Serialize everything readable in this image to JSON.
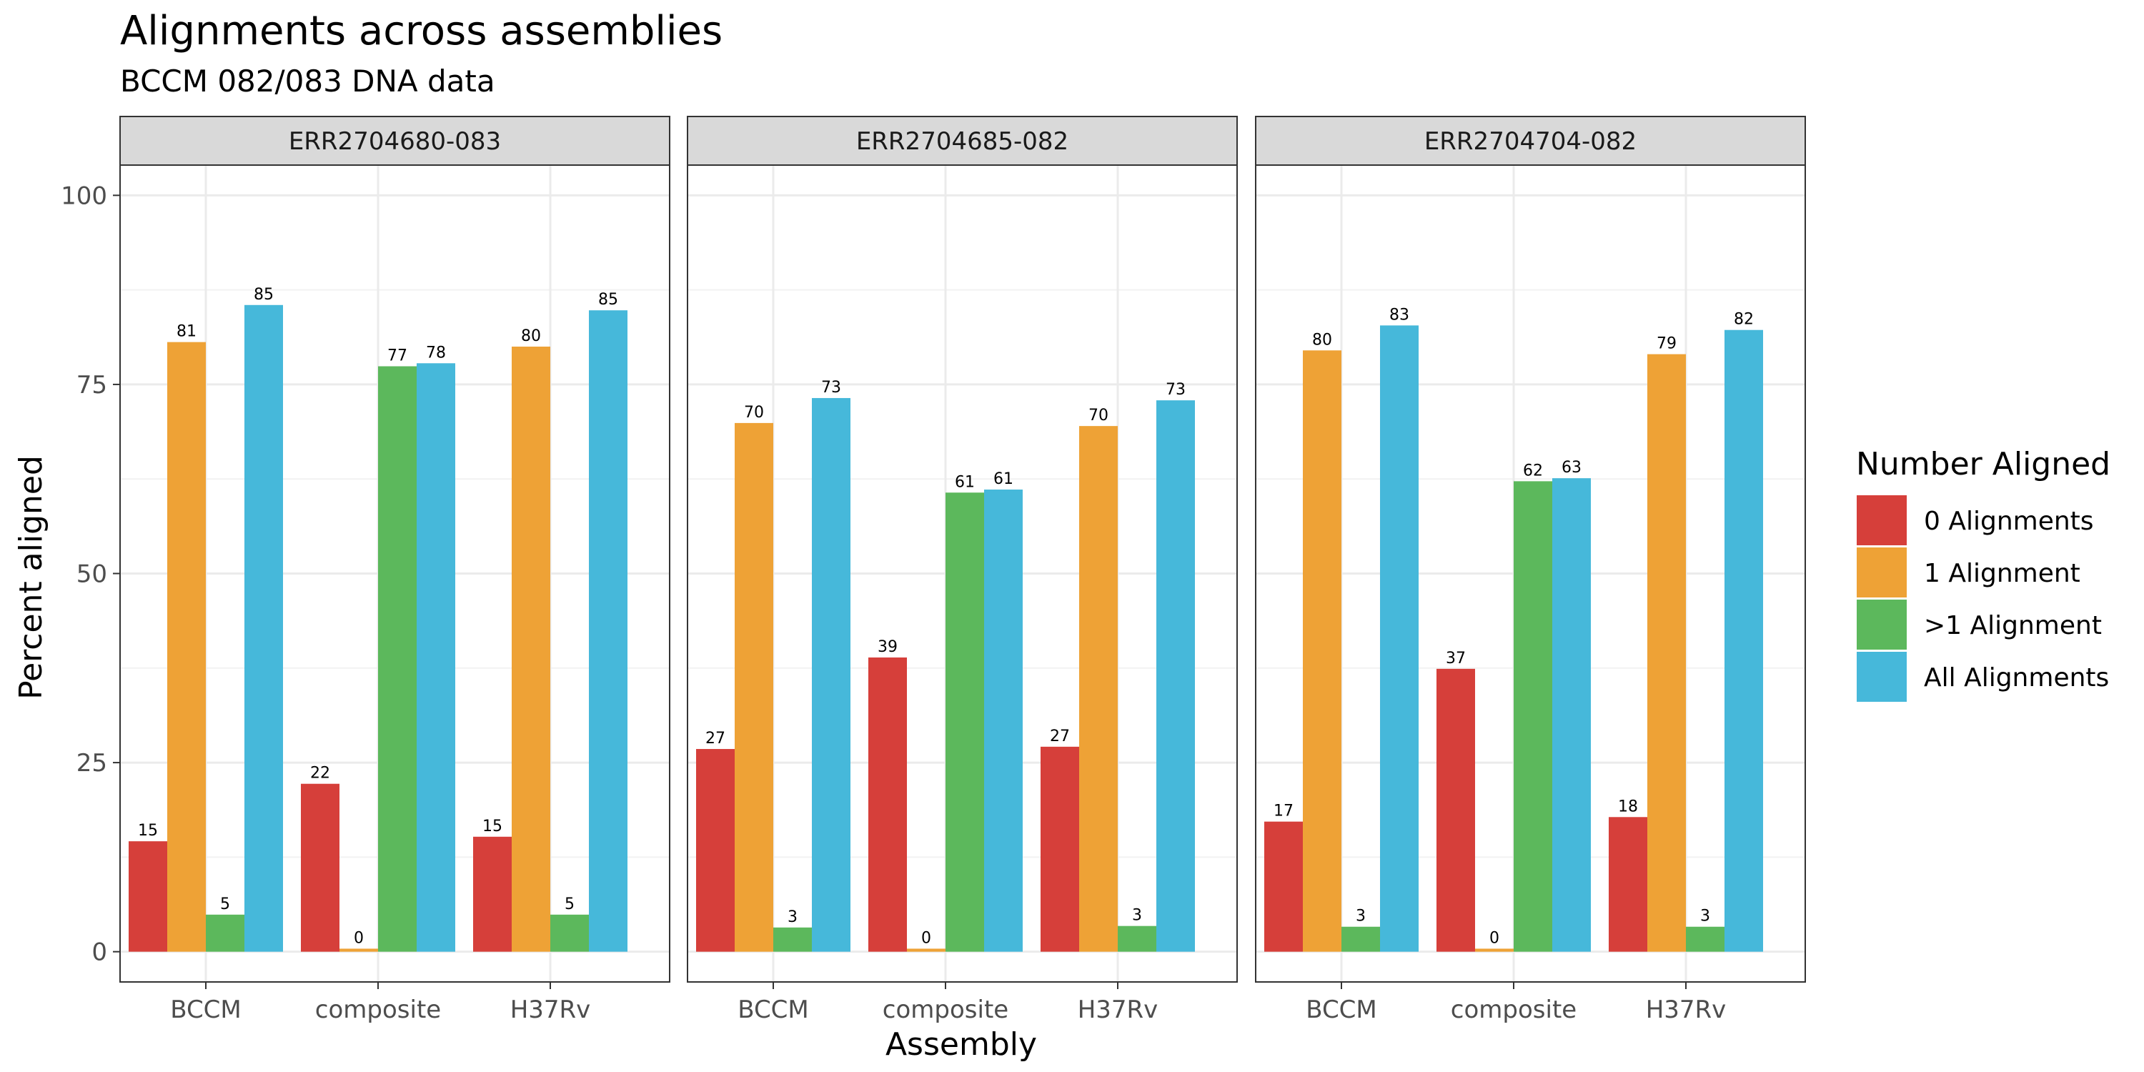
{
  "chart_data": {
    "type": "bar",
    "title": "Alignments across assemblies",
    "subtitle": "BCCM 082/083 DNA data",
    "xlabel": "Assembly",
    "ylabel": "Percent aligned",
    "ylim": [
      -4,
      104
    ],
    "yticks": [
      0,
      25,
      50,
      75,
      100
    ],
    "categories": [
      "BCCM",
      "composite",
      "H37Rv"
    ],
    "grid": true,
    "legend": {
      "title": "Number Aligned",
      "position": "right",
      "entries": [
        "0 Alignments",
        "1 Alignment",
        ">1 Alignment",
        "All Alignments"
      ]
    },
    "colors": [
      "#d63f3a",
      "#eea236",
      "#5cb85c",
      "#46b8da"
    ],
    "facets": [
      {
        "label": "ERR2704680-083",
        "series": [
          {
            "name": "0 Alignments",
            "values": [
              14.6,
              22.2,
              15.2
            ],
            "labels": [
              "15",
              "22",
              "15"
            ]
          },
          {
            "name": "1 Alignment",
            "values": [
              80.6,
              0.4,
              80.0
            ],
            "labels": [
              "81",
              "0",
              "80"
            ]
          },
          {
            "name": ">1 Alignment",
            "values": [
              4.9,
              77.4,
              4.9
            ],
            "labels": [
              "5",
              "77",
              "5"
            ]
          },
          {
            "name": "All Alignments",
            "values": [
              85.5,
              77.8,
              84.8
            ],
            "labels": [
              "85",
              "78",
              "85"
            ]
          }
        ]
      },
      {
        "label": "ERR2704685-082",
        "series": [
          {
            "name": "0 Alignments",
            "values": [
              26.8,
              38.9,
              27.1
            ],
            "labels": [
              "27",
              "39",
              "27"
            ]
          },
          {
            "name": "1 Alignment",
            "values": [
              69.9,
              0.4,
              69.5
            ],
            "labels": [
              "70",
              "0",
              "70"
            ]
          },
          {
            "name": ">1 Alignment",
            "values": [
              3.2,
              60.7,
              3.4
            ],
            "labels": [
              "3",
              "61",
              "3"
            ]
          },
          {
            "name": "All Alignments",
            "values": [
              73.2,
              61.1,
              72.9
            ],
            "labels": [
              "73",
              "61",
              "73"
            ]
          }
        ]
      },
      {
        "label": "ERR2704704-082",
        "series": [
          {
            "name": "0 Alignments",
            "values": [
              17.2,
              37.4,
              17.8
            ],
            "labels": [
              "17",
              "37",
              "18"
            ]
          },
          {
            "name": "1 Alignment",
            "values": [
              79.5,
              0.4,
              79.0
            ],
            "labels": [
              "80",
              "0",
              "79"
            ]
          },
          {
            "name": ">1 Alignment",
            "values": [
              3.3,
              62.2,
              3.3
            ],
            "labels": [
              "3",
              "62",
              "3"
            ]
          },
          {
            "name": "All Alignments",
            "values": [
              82.8,
              62.6,
              82.2
            ],
            "labels": [
              "83",
              "63",
              "82"
            ]
          }
        ]
      }
    ]
  }
}
